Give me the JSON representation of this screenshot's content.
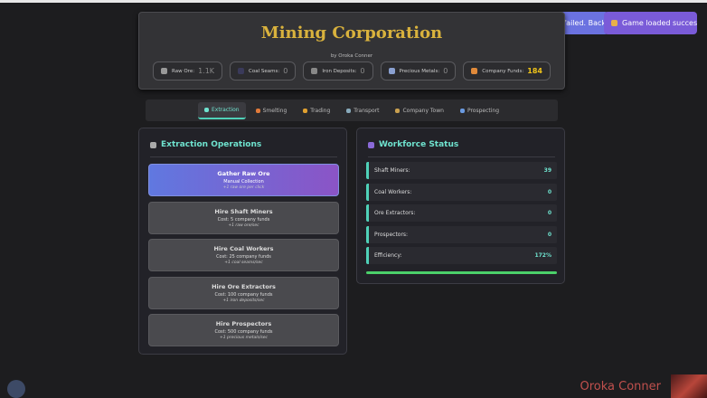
{
  "toasts": [
    "The stores failed. Back to extrac",
    "Game loaded successfully!"
  ],
  "header": {
    "title": "Mining Corporation",
    "byline": "by Oroka Conner",
    "resources": [
      {
        "label": "Raw Ore:",
        "value": "1.1K"
      },
      {
        "label": "Coal Seams:",
        "value": "0"
      },
      {
        "label": "Iron Deposits:",
        "value": "0"
      },
      {
        "label": "Precious Metals:",
        "value": "0"
      },
      {
        "label": "Company Funds:",
        "value": "184"
      }
    ]
  },
  "tabs": [
    "Extraction",
    "Smelting",
    "Trading",
    "Transport",
    "Company Town",
    "Prospecting"
  ],
  "extraction": {
    "title": "Extraction Operations",
    "actions": [
      {
        "title": "Gather Raw Ore",
        "subtitle": "Manual Collection",
        "effect": "+1 raw ore per click"
      },
      {
        "title": "Hire Shaft Miners",
        "subtitle": "Cost: 5 company funds",
        "effect": "+1 raw ore/sec"
      },
      {
        "title": "Hire Coal Workers",
        "subtitle": "Cost: 25 company funds",
        "effect": "+1 coal seams/sec"
      },
      {
        "title": "Hire Ore Extractors",
        "subtitle": "Cost: 100 company funds",
        "effect": "+1 iron deposits/sec"
      },
      {
        "title": "Hire Prospectors",
        "subtitle": "Cost: 500 company funds",
        "effect": "+1 precious metals/sec"
      }
    ]
  },
  "workforce": {
    "title": "Workforce Status",
    "rows": [
      {
        "label": "Shaft Miners:",
        "value": "39"
      },
      {
        "label": "Coal Workers:",
        "value": "0"
      },
      {
        "label": "Ore Extractors:",
        "value": "0"
      },
      {
        "label": "Prospectors:",
        "value": "0"
      },
      {
        "label": "Efficiency:",
        "value": "172%"
      }
    ]
  },
  "footer": {
    "name": "Oroka Conner"
  }
}
